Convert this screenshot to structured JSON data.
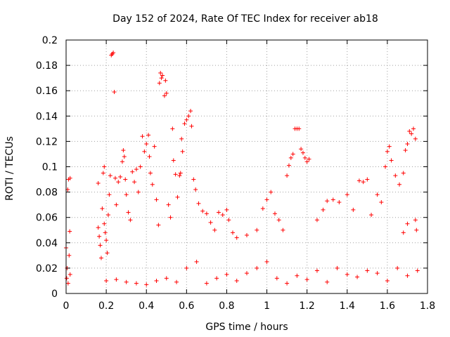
{
  "chart_data": {
    "type": "scatter",
    "title": "Day 152 of 2024, Rate Of TEC Index for receiver ab18",
    "xlabel": "GPS time / hours",
    "ylabel": "ROTI / TECUs",
    "xlim": [
      0,
      1.8
    ],
    "ylim": [
      0,
      0.2
    ],
    "xticks": [
      "0",
      "0.2",
      "0.4",
      "0.6",
      "0.8",
      "1",
      "1.2",
      "1.4",
      "1.6",
      "1.8"
    ],
    "yticks": [
      "0",
      "0.02",
      "0.04",
      "0.06",
      "0.08",
      "0.1",
      "0.12",
      "0.14",
      "0.16",
      "0.18",
      "0.2"
    ],
    "grid": true,
    "legend": "none",
    "marker": "+",
    "color": "#ff0000",
    "series": [
      {
        "values": [
          [
            0.0,
            0.036
          ],
          [
            0.003,
            0.012
          ],
          [
            0.005,
            0.02
          ],
          [
            0.008,
            0.082
          ],
          [
            0.01,
            0.008
          ],
          [
            0.012,
            0.09
          ],
          [
            0.015,
            0.03
          ],
          [
            0.018,
            0.049
          ],
          [
            0.02,
            0.091
          ],
          [
            0.02,
            0.015
          ],
          [
            0.16,
            0.087
          ],
          [
            0.16,
            0.052
          ],
          [
            0.165,
            0.045
          ],
          [
            0.17,
            0.038
          ],
          [
            0.175,
            0.028
          ],
          [
            0.18,
            0.067
          ],
          [
            0.185,
            0.095
          ],
          [
            0.19,
            0.1
          ],
          [
            0.19,
            0.055
          ],
          [
            0.195,
            0.048
          ],
          [
            0.2,
            0.042
          ],
          [
            0.205,
            0.032
          ],
          [
            0.21,
            0.062
          ],
          [
            0.215,
            0.078
          ],
          [
            0.22,
            0.093
          ],
          [
            0.225,
            0.188
          ],
          [
            0.23,
            0.189
          ],
          [
            0.235,
            0.19
          ],
          [
            0.24,
            0.159
          ],
          [
            0.245,
            0.091
          ],
          [
            0.25,
            0.07
          ],
          [
            0.26,
            0.088
          ],
          [
            0.27,
            0.092
          ],
          [
            0.28,
            0.104
          ],
          [
            0.285,
            0.113
          ],
          [
            0.29,
            0.108
          ],
          [
            0.295,
            0.09
          ],
          [
            0.3,
            0.078
          ],
          [
            0.31,
            0.064
          ],
          [
            0.32,
            0.058
          ],
          [
            0.33,
            0.096
          ],
          [
            0.34,
            0.088
          ],
          [
            0.35,
            0.098
          ],
          [
            0.36,
            0.08
          ],
          [
            0.37,
            0.1
          ],
          [
            0.38,
            0.124
          ],
          [
            0.39,
            0.112
          ],
          [
            0.4,
            0.118
          ],
          [
            0.41,
            0.125
          ],
          [
            0.415,
            0.108
          ],
          [
            0.42,
            0.095
          ],
          [
            0.43,
            0.086
          ],
          [
            0.44,
            0.116
          ],
          [
            0.45,
            0.074
          ],
          [
            0.46,
            0.054
          ],
          [
            0.465,
            0.166
          ],
          [
            0.47,
            0.174
          ],
          [
            0.475,
            0.17
          ],
          [
            0.48,
            0.172
          ],
          [
            0.49,
            0.156
          ],
          [
            0.495,
            0.168
          ],
          [
            0.5,
            0.158
          ],
          [
            0.51,
            0.07
          ],
          [
            0.52,
            0.06
          ],
          [
            0.53,
            0.13
          ],
          [
            0.535,
            0.105
          ],
          [
            0.545,
            0.094
          ],
          [
            0.555,
            0.076
          ],
          [
            0.565,
            0.093
          ],
          [
            0.57,
            0.095
          ],
          [
            0.575,
            0.122
          ],
          [
            0.58,
            0.112
          ],
          [
            0.59,
            0.134
          ],
          [
            0.6,
            0.137
          ],
          [
            0.61,
            0.14
          ],
          [
            0.62,
            0.144
          ],
          [
            0.625,
            0.132
          ],
          [
            0.635,
            0.09
          ],
          [
            0.645,
            0.082
          ],
          [
            0.66,
            0.071
          ],
          [
            0.68,
            0.065
          ],
          [
            0.7,
            0.063
          ],
          [
            0.72,
            0.056
          ],
          [
            0.74,
            0.05
          ],
          [
            0.76,
            0.064
          ],
          [
            0.78,
            0.062
          ],
          [
            0.8,
            0.066
          ],
          [
            0.81,
            0.058
          ],
          [
            0.83,
            0.048
          ],
          [
            0.85,
            0.044
          ],
          [
            0.9,
            0.046
          ],
          [
            0.95,
            0.05
          ],
          [
            0.98,
            0.067
          ],
          [
            1.0,
            0.074
          ],
          [
            1.02,
            0.08
          ],
          [
            1.04,
            0.063
          ],
          [
            1.06,
            0.058
          ],
          [
            1.08,
            0.05
          ],
          [
            1.1,
            0.093
          ],
          [
            1.11,
            0.101
          ],
          [
            1.12,
            0.107
          ],
          [
            1.13,
            0.11
          ],
          [
            1.14,
            0.13
          ],
          [
            1.15,
            0.13
          ],
          [
            1.16,
            0.13
          ],
          [
            1.17,
            0.114
          ],
          [
            1.18,
            0.111
          ],
          [
            1.19,
            0.107
          ],
          [
            1.2,
            0.104
          ],
          [
            1.21,
            0.106
          ],
          [
            1.25,
            0.058
          ],
          [
            1.28,
            0.066
          ],
          [
            1.3,
            0.073
          ],
          [
            1.33,
            0.074
          ],
          [
            1.36,
            0.072
          ],
          [
            1.4,
            0.078
          ],
          [
            1.43,
            0.066
          ],
          [
            1.46,
            0.089
          ],
          [
            1.48,
            0.088
          ],
          [
            1.5,
            0.09
          ],
          [
            1.52,
            0.062
          ],
          [
            1.55,
            0.078
          ],
          [
            1.57,
            0.072
          ],
          [
            1.59,
            0.1
          ],
          [
            1.6,
            0.112
          ],
          [
            1.61,
            0.116
          ],
          [
            1.62,
            0.105
          ],
          [
            1.64,
            0.093
          ],
          [
            1.66,
            0.086
          ],
          [
            1.68,
            0.095
          ],
          [
            1.69,
            0.113
          ],
          [
            1.7,
            0.118
          ],
          [
            1.71,
            0.128
          ],
          [
            1.72,
            0.126
          ],
          [
            1.73,
            0.13
          ],
          [
            1.74,
            0.122
          ],
          [
            1.745,
            0.05
          ],
          [
            1.74,
            0.058
          ],
          [
            1.7,
            0.055
          ],
          [
            1.68,
            0.048
          ],
          [
            0.2,
            0.01
          ],
          [
            0.25,
            0.011
          ],
          [
            0.3,
            0.009
          ],
          [
            0.35,
            0.008
          ],
          [
            0.4,
            0.007
          ],
          [
            0.45,
            0.01
          ],
          [
            0.5,
            0.012
          ],
          [
            0.55,
            0.009
          ],
          [
            0.6,
            0.02
          ],
          [
            0.65,
            0.025
          ],
          [
            0.7,
            0.008
          ],
          [
            0.75,
            0.012
          ],
          [
            0.8,
            0.015
          ],
          [
            0.85,
            0.01
          ],
          [
            0.9,
            0.016
          ],
          [
            0.95,
            0.02
          ],
          [
            1.0,
            0.025
          ],
          [
            1.05,
            0.012
          ],
          [
            1.1,
            0.008
          ],
          [
            1.15,
            0.014
          ],
          [
            1.2,
            0.011
          ],
          [
            1.25,
            0.018
          ],
          [
            1.3,
            0.009
          ],
          [
            1.35,
            0.02
          ],
          [
            1.4,
            0.015
          ],
          [
            1.45,
            0.013
          ],
          [
            1.5,
            0.018
          ],
          [
            1.55,
            0.016
          ],
          [
            1.6,
            0.01
          ],
          [
            1.65,
            0.02
          ],
          [
            1.7,
            0.014
          ],
          [
            1.75,
            0.018
          ]
        ]
      }
    ]
  }
}
